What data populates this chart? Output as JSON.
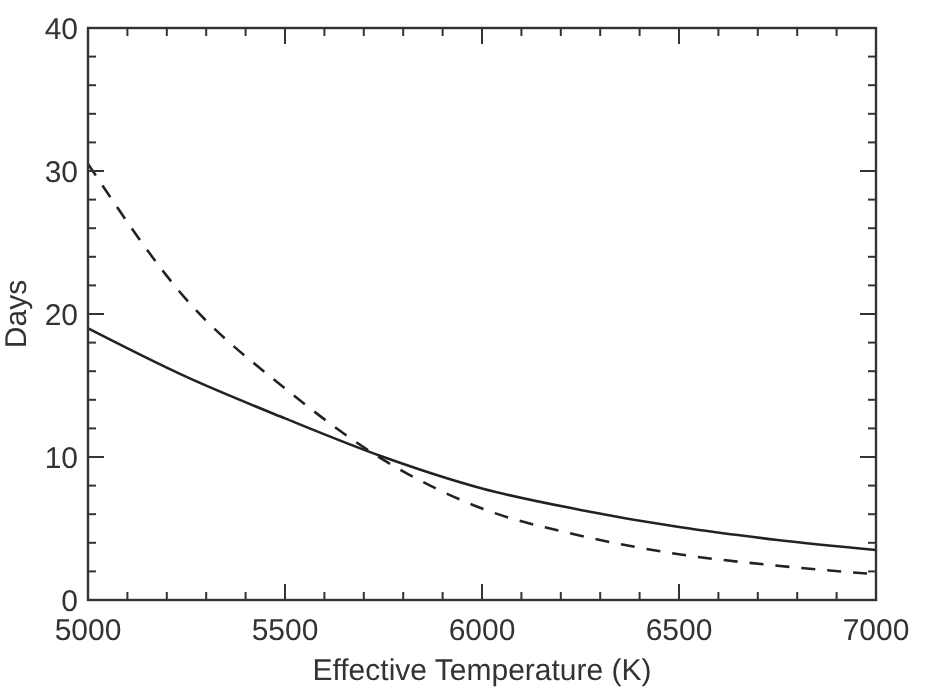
{
  "chart_data": {
    "type": "line",
    "xlabel": "Effective Temperature (K)",
    "ylabel": "Days",
    "x": [
      5000,
      5250,
      5500,
      5750,
      6000,
      6250,
      6500,
      6750,
      7000
    ],
    "series": [
      {
        "color": "#222222",
        "line_style": "solid",
        "values": [
          19.0,
          15.6,
          12.7,
          10.0,
          7.8,
          6.3,
          5.1,
          4.2,
          3.5
        ]
      },
      {
        "color": "#222222",
        "line_style": "dashed",
        "values": [
          30.5,
          21.0,
          14.8,
          9.8,
          6.4,
          4.5,
          3.2,
          2.4,
          1.8
        ]
      }
    ],
    "xlim": [
      5000,
      7000
    ],
    "ylim": [
      0,
      40
    ],
    "xticks": [
      5000,
      {
        "value": 5100,
        "label": null
      },
      {
        "value": 5200,
        "label": null
      },
      {
        "value": 5300,
        "label": null
      },
      {
        "value": 5400,
        "label": null
      },
      5500,
      {
        "value": 5600,
        "label": null
      },
      {
        "value": 5700,
        "label": null
      },
      {
        "value": 5800,
        "label": null
      },
      {
        "value": 5900,
        "label": null
      },
      6000,
      {
        "value": 6100,
        "label": null
      },
      {
        "value": 6200,
        "label": null
      },
      {
        "value": 6300,
        "label": null
      },
      {
        "value": 6400,
        "label": null
      },
      6500,
      {
        "value": 6600,
        "label": null
      },
      {
        "value": 6700,
        "label": null
      },
      {
        "value": 6800,
        "label": null
      },
      {
        "value": 6900,
        "label": null
      },
      7000
    ],
    "yticks": [
      0,
      {
        "value": 2,
        "label": null
      },
      {
        "value": 4,
        "label": null
      },
      {
        "value": 6,
        "label": null
      },
      {
        "value": 8,
        "label": null
      },
      10,
      {
        "value": 12,
        "label": null
      },
      {
        "value": 14,
        "label": null
      },
      {
        "value": 16,
        "label": null
      },
      {
        "value": 18,
        "label": null
      },
      20,
      {
        "value": 22,
        "label": null
      },
      {
        "value": 24,
        "label": null
      },
      {
        "value": 26,
        "label": null
      },
      {
        "value": 28,
        "label": null
      },
      30,
      {
        "value": 32,
        "label": null
      },
      {
        "value": 34,
        "label": null
      },
      {
        "value": 36,
        "label": null
      },
      {
        "value": 38,
        "label": null
      },
      40
    ],
    "grid": false,
    "marker": "none"
  }
}
